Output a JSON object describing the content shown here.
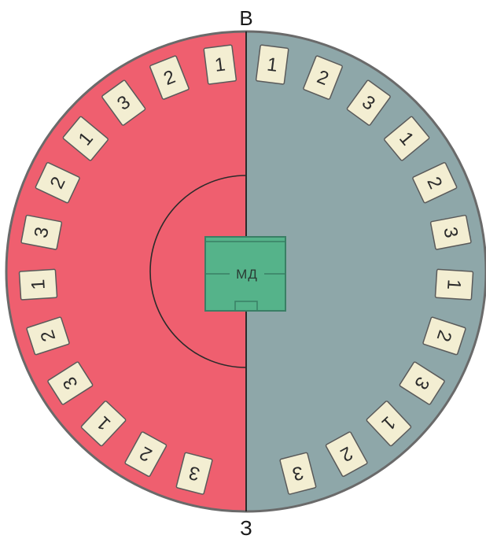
{
  "labels": {
    "top": "В",
    "bottom": "З",
    "center": "МД"
  },
  "colors": {
    "left_half": "#ef5f6f",
    "right_half": "#8ea7a9",
    "outline": "#6a6a6a",
    "tile_fill": "#f3eed2",
    "tile_border": "#5a5a5a",
    "field": "#55b38a",
    "field_border": "#3a7f65",
    "line": "#2b2b2b"
  },
  "left_tiles": [
    "1",
    "2",
    "3",
    "1",
    "2",
    "3",
    "1",
    "2",
    "3",
    "1",
    "2",
    "3"
  ],
  "right_tiles": [
    "1",
    "2",
    "3",
    "1",
    "2",
    "3",
    "1",
    "2",
    "3",
    "1",
    "2",
    "3"
  ]
}
